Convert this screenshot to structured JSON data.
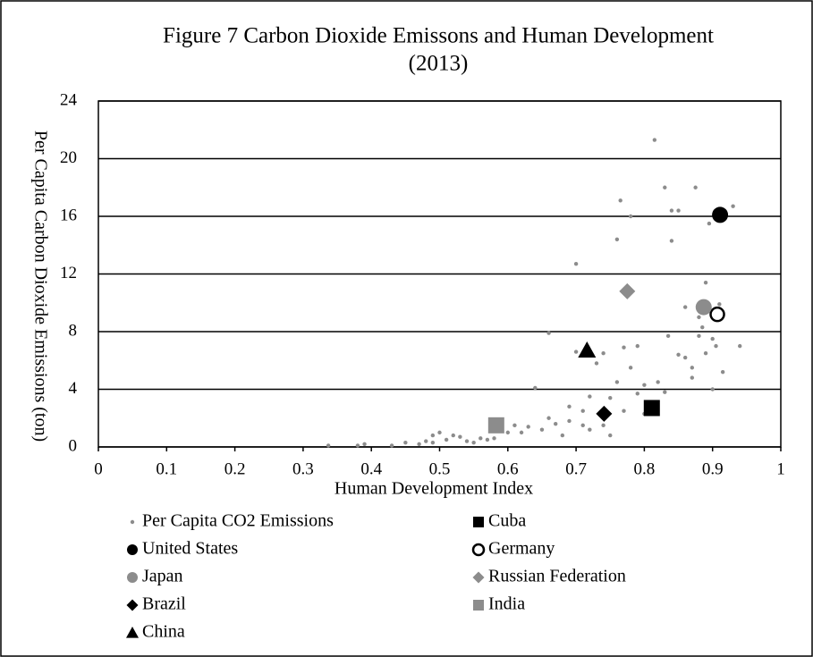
{
  "chart_data": {
    "type": "scatter",
    "title": "Figure 7 Carbon Dioxide Emissons and Human Development",
    "subtitle": "(2013)",
    "x_label": "Human Development Index",
    "y_label": "Per Capita Carbon Dioxide Emissions (ton)",
    "xlim": [
      0,
      1
    ],
    "xticks": [
      0,
      0.1,
      0.2,
      0.3,
      0.4,
      0.5,
      0.6,
      0.7,
      0.8,
      0.9,
      1
    ],
    "ylim": [
      0,
      24
    ],
    "yticks": [
      0,
      4,
      8,
      12,
      16,
      20,
      24
    ],
    "grid": true,
    "legend": "bottom",
    "series": [
      {
        "name": "Per Capita CO2 Emissions",
        "color": "#8c8c8c",
        "marker": "dot",
        "x": [
          0.337,
          0.38,
          0.39,
          0.43,
          0.45,
          0.47,
          0.48,
          0.49,
          0.5,
          0.49,
          0.51,
          0.52,
          0.53,
          0.54,
          0.55,
          0.56,
          0.57,
          0.58,
          0.6,
          0.61,
          0.62,
          0.63,
          0.64,
          0.65,
          0.66,
          0.66,
          0.67,
          0.68,
          0.69,
          0.69,
          0.7,
          0.7,
          0.71,
          0.71,
          0.72,
          0.72,
          0.73,
          0.74,
          0.74,
          0.75,
          0.75,
          0.76,
          0.76,
          0.765,
          0.77,
          0.77,
          0.78,
          0.78,
          0.79,
          0.79,
          0.8,
          0.8,
          0.815,
          0.82,
          0.83,
          0.83,
          0.835,
          0.84,
          0.84,
          0.85,
          0.85,
          0.86,
          0.87,
          0.875,
          0.88,
          0.88,
          0.885,
          0.89,
          0.89,
          0.895,
          0.9,
          0.9,
          0.905,
          0.91,
          0.915,
          0.93,
          0.94,
          0.87,
          0.86
        ],
        "values": [
          0.1,
          0.1,
          0.2,
          0.1,
          0.3,
          0.2,
          0.4,
          0.8,
          1.0,
          0.3,
          0.5,
          0.8,
          0.7,
          0.4,
          0.3,
          0.6,
          0.5,
          0.6,
          1.0,
          1.5,
          1.0,
          1.4,
          4.1,
          1.2,
          7.9,
          2.0,
          1.6,
          0.8,
          2.8,
          1.8,
          12.7,
          6.6,
          1.5,
          2.5,
          3.5,
          1.2,
          5.8,
          6.5,
          1.5,
          0.8,
          3.4,
          14.4,
          4.5,
          17.1,
          6.9,
          2.5,
          16.0,
          5.5,
          7.0,
          3.7,
          2.3,
          4.3,
          21.3,
          4.5,
          18.0,
          3.8,
          7.7,
          16.4,
          14.3,
          16.4,
          6.4,
          9.7,
          5.5,
          18.0,
          7.7,
          9.0,
          8.3,
          11.4,
          6.5,
          15.5,
          4.0,
          7.5,
          7.0,
          9.9,
          5.2,
          16.7,
          7.0,
          4.8,
          6.2
        ]
      },
      {
        "name": "Cuba",
        "color": "#000000",
        "marker": "square",
        "x": [
          0.811
        ],
        "values": [
          2.7
        ]
      },
      {
        "name": "United States",
        "color": "#000000",
        "marker": "circle",
        "x": [
          0.911
        ],
        "values": [
          16.1
        ]
      },
      {
        "name": "Germany",
        "color": "#000000",
        "marker": "circle",
        "hollow": true,
        "x": [
          0.907
        ],
        "values": [
          9.2
        ]
      },
      {
        "name": "Japan",
        "color": "#8c8c8c",
        "marker": "circle",
        "x": [
          0.887
        ],
        "values": [
          9.7
        ]
      },
      {
        "name": "Russian Federation",
        "color": "#8c8c8c",
        "marker": "diamond",
        "x": [
          0.775
        ],
        "values": [
          10.8
        ]
      },
      {
        "name": "Brazil",
        "color": "#000000",
        "marker": "diamond",
        "x": [
          0.741
        ],
        "values": [
          2.3
        ]
      },
      {
        "name": "India",
        "color": "#8c8c8c",
        "marker": "square",
        "x": [
          0.583
        ],
        "values": [
          1.5
        ]
      },
      {
        "name": "China",
        "color": "#000000",
        "marker": "triangle",
        "x": [
          0.716
        ],
        "values": [
          6.7
        ]
      }
    ]
  }
}
